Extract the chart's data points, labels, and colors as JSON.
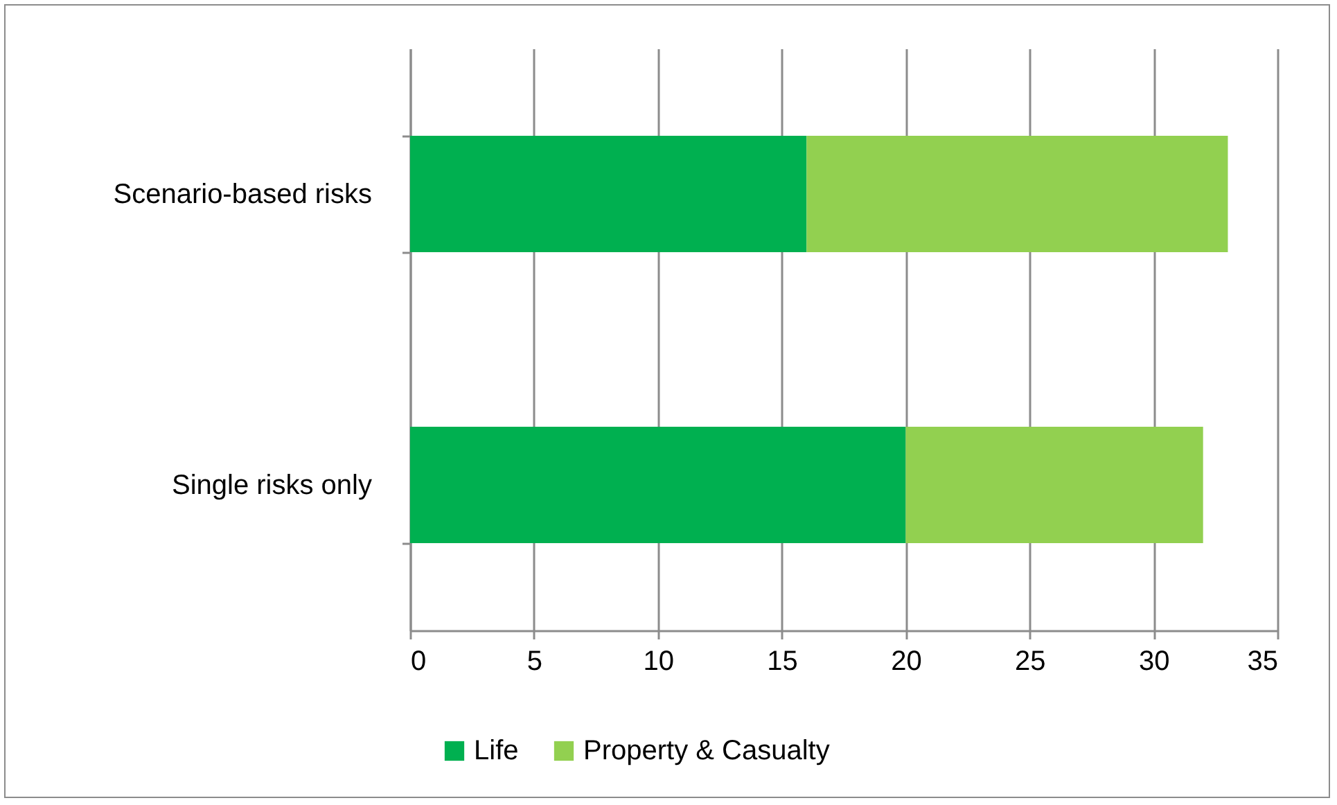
{
  "chart_data": {
    "type": "bar",
    "orientation": "horizontal",
    "stacked": true,
    "categories": [
      "Scenario-based risks",
      "Single risks only"
    ],
    "series": [
      {
        "name": "Life",
        "color": "#00b050",
        "values": [
          16,
          20
        ]
      },
      {
        "name": "Property & Casualty",
        "color": "#92d050",
        "values": [
          17,
          12
        ]
      }
    ],
    "xlim": [
      0,
      35
    ],
    "xticks": [
      0,
      5,
      10,
      15,
      20,
      25,
      30,
      35
    ],
    "grid": "x",
    "legend": "bottom"
  }
}
